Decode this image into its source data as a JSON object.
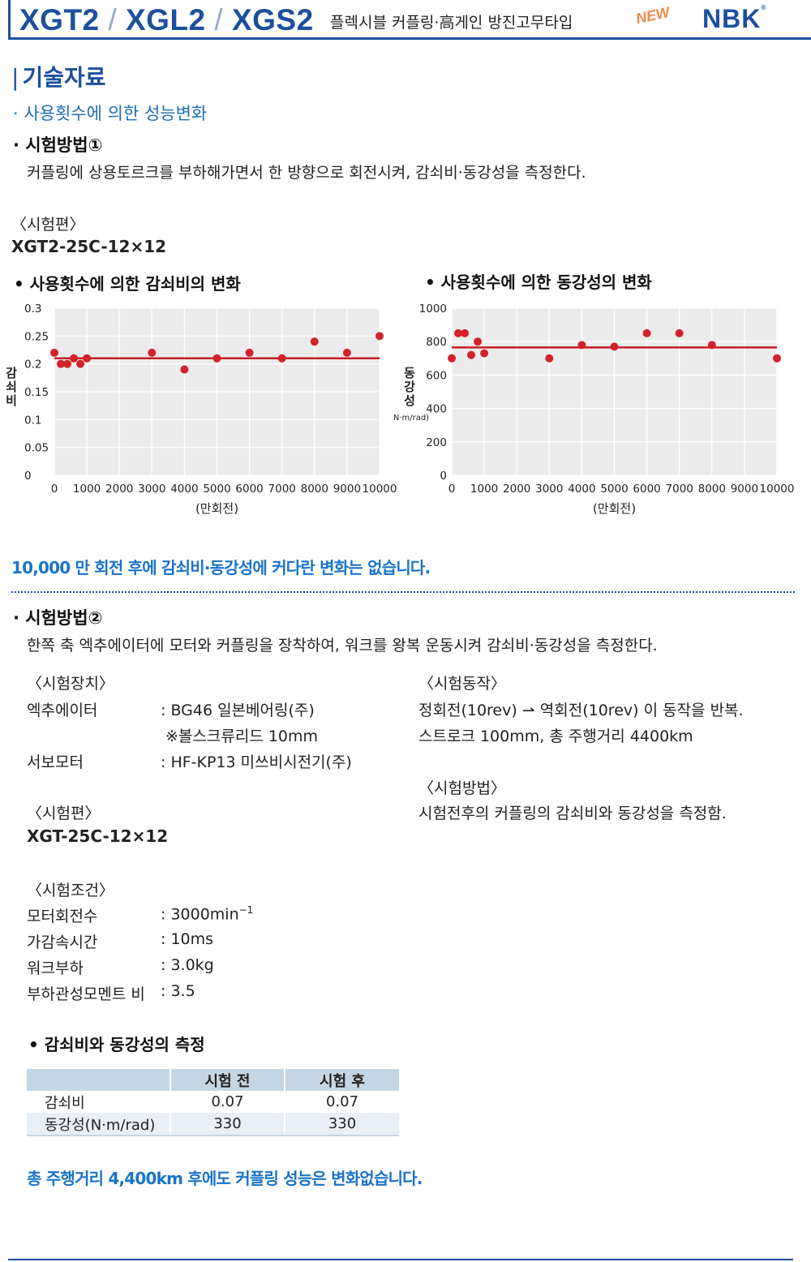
{
  "header": {
    "models": [
      "XGT2",
      "XGL2",
      "XGS2"
    ],
    "slash": "/",
    "subtitle": "플렉시블 커플링·高게인 방진고무타입",
    "badge": "NEW",
    "logo": "NBK",
    "logo_mark": "®"
  },
  "section_title": "기술자료",
  "section_bar": "|",
  "topic_bullet": "· 사용횟수에 의한 성능변화",
  "method1": {
    "heading": "· 시험방법①",
    "description": "커플링에 상용토르크를 부하해가면서 한 방향으로 회전시켜, 감쇠비·동강성을 측정한다.",
    "sample_label": "〈시험편〉",
    "sample_model": "XGT2-25C-12×12"
  },
  "chart_titles": [
    "•  사용횟수에 의한 감쇠비의 변화",
    "•  사용횟수에 의한 동강성의 변화"
  ],
  "chart_data": [
    {
      "type": "scatter",
      "title": "사용횟수에 의한 감쇠비의 변화",
      "xlabel": "(만회전)",
      "ylabel": "감쇠비",
      "xlim": [
        0,
        10000
      ],
      "ylim": [
        0,
        0.3
      ],
      "x_ticks": [
        0,
        1000,
        2000,
        3000,
        4000,
        5000,
        6000,
        7000,
        8000,
        9000,
        10000
      ],
      "y_ticks": [
        0,
        0.05,
        0.1,
        0.15,
        0.2,
        0.25,
        0.3
      ],
      "grid": true,
      "x": [
        0,
        200,
        400,
        600,
        800,
        1000,
        3000,
        4000,
        5000,
        6000,
        7000,
        8000,
        9000,
        10000
      ],
      "y": [
        0.22,
        0.2,
        0.2,
        0.21,
        0.2,
        0.21,
        0.22,
        0.19,
        0.21,
        0.22,
        0.21,
        0.24,
        0.22,
        0.25
      ],
      "reference_line": 0.21,
      "marker_color": "#d2232a",
      "line_color": "#c81e24"
    },
    {
      "type": "scatter",
      "title": "사용횟수에 의한 동강성의 변화",
      "xlabel": "(만회전)",
      "ylabel": "동강성",
      "yunit": "(N·m/rad)",
      "xlim": [
        0,
        10000
      ],
      "ylim": [
        0,
        1000
      ],
      "x_ticks": [
        0,
        1000,
        2000,
        3000,
        4000,
        5000,
        6000,
        7000,
        8000,
        9000,
        10000
      ],
      "y_ticks": [
        0,
        200,
        400,
        600,
        800,
        1000
      ],
      "grid": true,
      "x": [
        0,
        200,
        400,
        600,
        800,
        1000,
        3000,
        4000,
        5000,
        6000,
        7000,
        8000,
        10000
      ],
      "y": [
        700,
        850,
        850,
        720,
        800,
        730,
        700,
        780,
        770,
        850,
        850,
        780,
        700
      ],
      "reference_line": 765,
      "marker_color": "#d2232a",
      "line_color": "#c81e24"
    }
  ],
  "conclusion1": "10,000 만 회전 후에 감쇠비·동강성에 커다란 변화는 없습니다.",
  "method2": {
    "heading": "· 시험방법②",
    "description": "한쪽 축 엑추에이터에 모터와 커플링을 장착하여, 워크를 왕복 운동시켜 감쇠비·동강성을 측정한다.",
    "device_label": "〈시험장치〉",
    "devices": [
      {
        "name": "엑추에이터",
        "value": ": BG46 일본베어링(주)"
      },
      {
        "name": "",
        "value": "※볼스크류리드 10mm"
      },
      {
        "name": "서보모터",
        "value": ": HF-KP13 미쓰비시전기(주)"
      }
    ],
    "sample_label": "〈시험편〉",
    "sample_model": "XGT-25C-12×12",
    "condition_label": "〈시험조건〉",
    "conditions": [
      {
        "name": "모터회전수",
        "value": ": 3000min",
        "sup": "−1"
      },
      {
        "name": "가감속시간",
        "value": ": 10ms",
        "sup": ""
      },
      {
        "name": "워크부하",
        "value": ": 3.0kg",
        "sup": ""
      },
      {
        "name": "부하관성모멘트 비",
        "value": ": 3.5",
        "sup": ""
      }
    ],
    "operation_label": "〈시험동작〉",
    "operation_lines": [
      "정회전(10rev) ⇀ 역회전(10rev)  이 동작을 반복.",
      "스트로크 100mm, 총 주행거리 4400km"
    ],
    "procedure_label": "〈시험방법〉",
    "procedure_text": "시험전후의 커플링의 감쇠비와 동강성을 측정함."
  },
  "measurement": {
    "title": "•  감쇠비와 동강성의 측정",
    "headers": [
      "",
      "시험 전",
      "시험 후"
    ],
    "rows": [
      {
        "label": "감쇠비",
        "before": "0.07",
        "after": "0.07"
      },
      {
        "label": "동강성(N·m/rad)",
        "before": "330",
        "after": "330"
      }
    ]
  },
  "conclusion2": "총 주행거리 4,400km 후에도 커플링 성능은 변화없습니다."
}
